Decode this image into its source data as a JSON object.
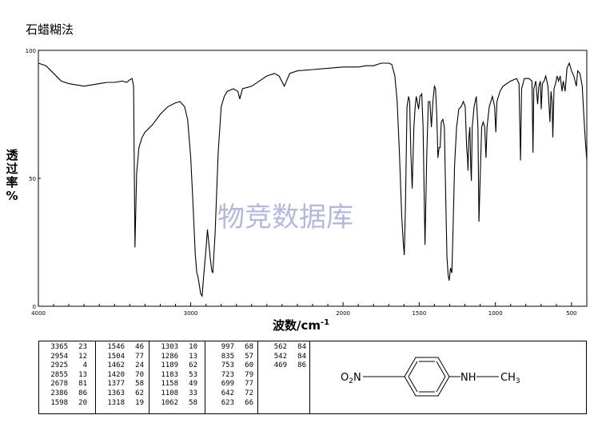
{
  "method": "石蜡糊法",
  "watermark": "物竞数据库",
  "chart_data": {
    "type": "line",
    "xlabel_pre": "波数/cm",
    "xlabel_sup": "-1",
    "ylabel_chars": [
      "透",
      "过",
      "率",
      "%"
    ],
    "xlim": [
      4000,
      400
    ],
    "ylim": [
      0,
      100
    ],
    "x_ticks": [
      4000,
      3000,
      2000,
      1500,
      1000,
      500
    ],
    "y_ticks": [
      0,
      50,
      100
    ],
    "series": [
      {
        "points": [
          [
            4000,
            95
          ],
          [
            3950,
            94
          ],
          [
            3900,
            91
          ],
          [
            3850,
            88
          ],
          [
            3800,
            87
          ],
          [
            3750,
            86.5
          ],
          [
            3700,
            86
          ],
          [
            3650,
            86.5
          ],
          [
            3600,
            87
          ],
          [
            3550,
            87.5
          ],
          [
            3500,
            87.5
          ],
          [
            3450,
            88
          ],
          [
            3420,
            87.5
          ],
          [
            3400,
            88.5
          ],
          [
            3385,
            89
          ],
          [
            3375,
            86
          ],
          [
            3366,
            23
          ],
          [
            3355,
            52
          ],
          [
            3340,
            62
          ],
          [
            3320,
            66
          ],
          [
            3300,
            68
          ],
          [
            3250,
            71
          ],
          [
            3200,
            75
          ],
          [
            3150,
            78
          ],
          [
            3100,
            79.5
          ],
          [
            3070,
            80
          ],
          [
            3040,
            78
          ],
          [
            3020,
            73
          ],
          [
            3000,
            58
          ],
          [
            2985,
            40
          ],
          [
            2970,
            20
          ],
          [
            2960,
            13
          ],
          [
            2954,
            12
          ],
          [
            2945,
            9
          ],
          [
            2935,
            5
          ],
          [
            2925,
            4
          ],
          [
            2915,
            12
          ],
          [
            2900,
            22
          ],
          [
            2890,
            30
          ],
          [
            2880,
            24
          ],
          [
            2870,
            18
          ],
          [
            2862,
            14
          ],
          [
            2855,
            13
          ],
          [
            2840,
            28
          ],
          [
            2820,
            60
          ],
          [
            2800,
            78
          ],
          [
            2780,
            82
          ],
          [
            2760,
            84
          ],
          [
            2720,
            85
          ],
          [
            2690,
            84
          ],
          [
            2678,
            81
          ],
          [
            2660,
            85
          ],
          [
            2600,
            86
          ],
          [
            2550,
            88
          ],
          [
            2500,
            90
          ],
          [
            2450,
            91
          ],
          [
            2420,
            90
          ],
          [
            2386,
            86
          ],
          [
            2350,
            91
          ],
          [
            2300,
            92
          ],
          [
            2200,
            92.5
          ],
          [
            2100,
            93
          ],
          [
            2000,
            93.5
          ],
          [
            1900,
            93.5
          ],
          [
            1850,
            94
          ],
          [
            1800,
            94
          ],
          [
            1750,
            95
          ],
          [
            1700,
            95
          ],
          [
            1680,
            94.5
          ],
          [
            1660,
            90
          ],
          [
            1645,
            80
          ],
          [
            1630,
            60
          ],
          [
            1615,
            35
          ],
          [
            1605,
            25
          ],
          [
            1598,
            20
          ],
          [
            1590,
            40
          ],
          [
            1580,
            78
          ],
          [
            1570,
            82
          ],
          [
            1563,
            80
          ],
          [
            1555,
            60
          ],
          [
            1546,
            46
          ],
          [
            1535,
            70
          ],
          [
            1528,
            77
          ],
          [
            1520,
            82
          ],
          [
            1513,
            80
          ],
          [
            1504,
            77
          ],
          [
            1495,
            82
          ],
          [
            1483,
            83
          ],
          [
            1475,
            70
          ],
          [
            1462,
            24
          ],
          [
            1450,
            60
          ],
          [
            1440,
            80
          ],
          [
            1430,
            80
          ],
          [
            1420,
            70
          ],
          [
            1410,
            80
          ],
          [
            1400,
            86
          ],
          [
            1393,
            85
          ],
          [
            1385,
            75
          ],
          [
            1377,
            58
          ],
          [
            1370,
            62
          ],
          [
            1363,
            62
          ],
          [
            1355,
            72
          ],
          [
            1345,
            73
          ],
          [
            1335,
            70
          ],
          [
            1325,
            40
          ],
          [
            1318,
            19
          ],
          [
            1310,
            12
          ],
          [
            1303,
            10
          ],
          [
            1295,
            15
          ],
          [
            1286,
            13
          ],
          [
            1278,
            30
          ],
          [
            1268,
            55
          ],
          [
            1255,
            70
          ],
          [
            1240,
            77
          ],
          [
            1225,
            78
          ],
          [
            1210,
            80
          ],
          [
            1198,
            78
          ],
          [
            1189,
            62
          ],
          [
            1183,
            58
          ],
          [
            1180,
            53
          ],
          [
            1175,
            65
          ],
          [
            1168,
            70
          ],
          [
            1162,
            55
          ],
          [
            1158,
            49
          ],
          [
            1152,
            70
          ],
          [
            1140,
            78
          ],
          [
            1125,
            82
          ],
          [
            1115,
            70
          ],
          [
            1108,
            33
          ],
          [
            1100,
            50
          ],
          [
            1090,
            70
          ],
          [
            1080,
            72
          ],
          [
            1070,
            70
          ],
          [
            1062,
            58
          ],
          [
            1055,
            70
          ],
          [
            1040,
            78
          ],
          [
            1020,
            82
          ],
          [
            1005,
            78
          ],
          [
            997,
            68
          ],
          [
            990,
            80
          ],
          [
            970,
            84
          ],
          [
            950,
            86
          ],
          [
            900,
            88
          ],
          [
            860,
            89
          ],
          [
            845,
            87
          ],
          [
            835,
            57
          ],
          [
            828,
            85
          ],
          [
            810,
            89
          ],
          [
            780,
            89
          ],
          [
            760,
            88
          ],
          [
            753,
            60
          ],
          [
            748,
            85
          ],
          [
            735,
            88
          ],
          [
            723,
            79
          ],
          [
            715,
            86
          ],
          [
            705,
            88
          ],
          [
            699,
            77
          ],
          [
            692,
            87
          ],
          [
            680,
            88
          ],
          [
            670,
            90
          ],
          [
            655,
            86
          ],
          [
            642,
            72
          ],
          [
            635,
            84
          ],
          [
            628,
            80
          ],
          [
            623,
            66
          ],
          [
            615,
            85
          ],
          [
            605,
            87
          ],
          [
            595,
            90
          ],
          [
            585,
            88
          ],
          [
            575,
            90
          ],
          [
            562,
            84
          ],
          [
            555,
            88
          ],
          [
            542,
            84
          ],
          [
            530,
            93
          ],
          [
            515,
            95
          ],
          [
            500,
            92
          ],
          [
            485,
            90
          ],
          [
            469,
            86
          ],
          [
            460,
            92
          ],
          [
            445,
            91
          ],
          [
            430,
            86
          ],
          [
            420,
            75
          ],
          [
            410,
            65
          ],
          [
            400,
            57
          ]
        ]
      }
    ],
    "peaks": [
      {
        "wn": "3365",
        "t": "23"
      },
      {
        "wn": "2954",
        "t": "12"
      },
      {
        "wn": "2925",
        "t": "4"
      },
      {
        "wn": "2855",
        "t": "13"
      },
      {
        "wn": "2678",
        "t": "81"
      },
      {
        "wn": "2386",
        "t": "86"
      },
      {
        "wn": "1598",
        "t": "20"
      },
      {
        "wn": "1546",
        "t": "46"
      },
      {
        "wn": "1504",
        "t": "77"
      },
      {
        "wn": "1462",
        "t": "24"
      },
      {
        "wn": "1420",
        "t": "70"
      },
      {
        "wn": "1377",
        "t": "58"
      },
      {
        "wn": "1363",
        "t": "62"
      },
      {
        "wn": "1318",
        "t": "19"
      },
      {
        "wn": "1303",
        "t": "10"
      },
      {
        "wn": "1286",
        "t": "13"
      },
      {
        "wn": "1189",
        "t": "62"
      },
      {
        "wn": "1183",
        "t": "53"
      },
      {
        "wn": "1158",
        "t": "49"
      },
      {
        "wn": "1108",
        "t": "33"
      },
      {
        "wn": "1062",
        "t": "58"
      },
      {
        "wn": "997",
        "t": "68"
      },
      {
        "wn": "835",
        "t": "57"
      },
      {
        "wn": "753",
        "t": "60"
      },
      {
        "wn": "723",
        "t": "79"
      },
      {
        "wn": "699",
        "t": "77"
      },
      {
        "wn": "642",
        "t": "72"
      },
      {
        "wn": "623",
        "t": "66"
      },
      {
        "wn": "562",
        "t": "84"
      },
      {
        "wn": "542",
        "t": "84"
      },
      {
        "wn": "469",
        "t": "86"
      }
    ]
  },
  "structure": {
    "left_o": "O",
    "left_sub": "2",
    "left_n": "N",
    "nh": "NH",
    "ch": "CH",
    "ch_sub": "3"
  }
}
